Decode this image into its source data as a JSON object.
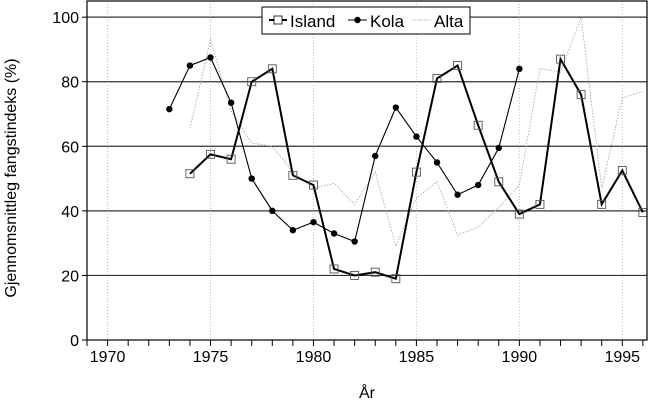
{
  "chart_data": {
    "type": "line",
    "title": "",
    "xlabel": "År",
    "ylabel": "Gjennomsnittleg fangstindeks (%)",
    "xlim": [
      1969,
      1996.2
    ],
    "ylim": [
      0,
      105
    ],
    "xticks": [
      1970,
      1975,
      1980,
      1985,
      1990,
      1995
    ],
    "yticks": [
      0,
      20,
      40,
      60,
      80,
      100
    ],
    "grid": "horizontal solid at y ticks, vertical dotted at x ticks",
    "legend_position": "top-center",
    "series": [
      {
        "name": "Island",
        "style": "thick solid line, open square markers",
        "color": "#000000",
        "x": [
          1974,
          1975,
          1976,
          1977,
          1978,
          1979,
          1980,
          1981,
          1982,
          1983,
          1984,
          1985,
          1986,
          1987,
          1988,
          1989,
          1990,
          1991,
          1992,
          1993,
          1994,
          1995,
          1996
        ],
        "y": [
          51.5,
          57.5,
          56,
          80,
          84,
          51,
          48,
          22,
          20,
          21,
          19,
          52,
          81,
          85,
          66.5,
          49,
          39,
          42,
          87,
          76,
          42,
          52.5,
          39.5
        ]
      },
      {
        "name": "Kola",
        "style": "thin solid line, filled circle markers",
        "color": "#000000",
        "x": [
          1973,
          1974,
          1975,
          1976,
          1977,
          1978,
          1979,
          1980,
          1981,
          1982,
          1983,
          1984,
          1985,
          1986,
          1987,
          1988,
          1989,
          1990
        ],
        "y": [
          71.5,
          85,
          87.5,
          73.5,
          50,
          40,
          34,
          36.5,
          33,
          30.5,
          57,
          72,
          63,
          55,
          45,
          48,
          59.5,
          84
        ]
      },
      {
        "name": "Alta",
        "style": "light gray dotted line",
        "color": "#b0b0b0",
        "x": [
          1974,
          1975,
          1976,
          1977,
          1978,
          1979,
          1980,
          1981,
          1982,
          1983,
          1984,
          1985,
          1986,
          1987,
          1988,
          1989,
          1990,
          1991,
          1992,
          1993,
          1994,
          1995,
          1996
        ],
        "y": [
          65.5,
          93,
          71,
          61,
          60,
          52,
          47,
          48.5,
          42,
          52,
          29,
          44,
          49,
          32.5,
          35,
          41,
          48,
          84,
          83,
          100,
          47,
          75,
          77
        ]
      }
    ]
  }
}
